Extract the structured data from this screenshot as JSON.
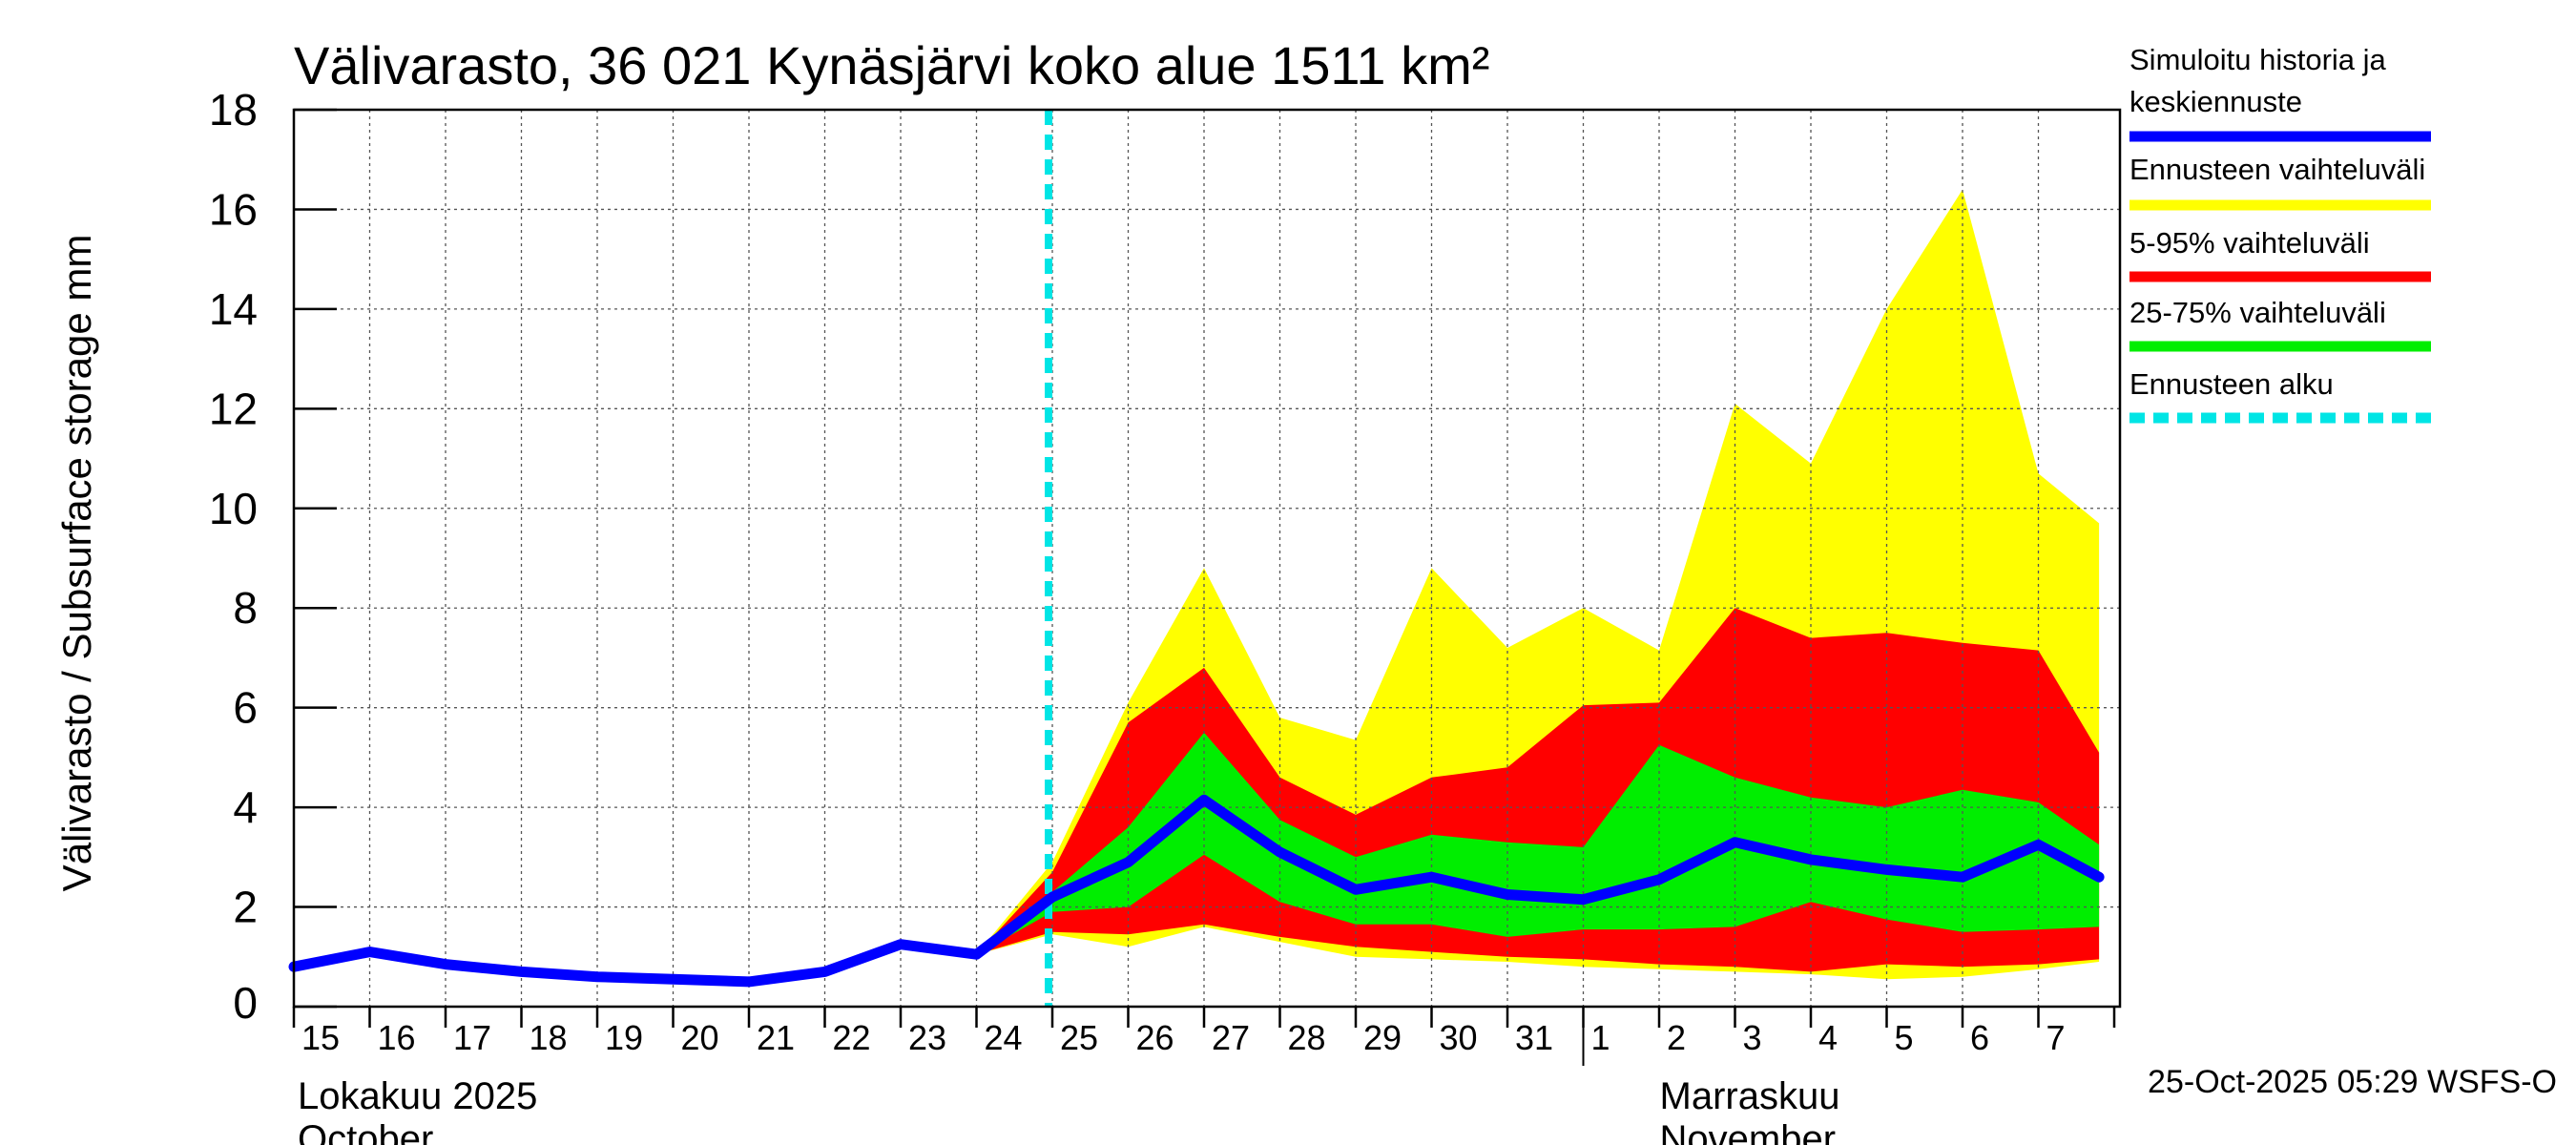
{
  "chart_data": {
    "type": "area",
    "title": "Välivarasto, 36 021 Kynäsjärvi koko alue 1511 km²",
    "ylabel": "Välivarasto / Subsurface storage  mm",
    "ylim": [
      0,
      18
    ],
    "yticks": [
      0,
      2,
      4,
      6,
      8,
      10,
      12,
      14,
      16,
      18
    ],
    "grid": true,
    "x_days": [
      "15",
      "16",
      "17",
      "18",
      "19",
      "20",
      "21",
      "22",
      "23",
      "24",
      "25",
      "26",
      "27",
      "28",
      "29",
      "30",
      "31",
      "1",
      "2",
      "3",
      "4",
      "5",
      "6",
      "7"
    ],
    "month_labels": [
      {
        "line1": "Lokakuu  2025",
        "line2": "October",
        "start_index": 0
      },
      {
        "line1": "Marraskuu",
        "line2": "November",
        "start_index": 17
      }
    ],
    "forecast_start_index": 9.95,
    "series": [
      {
        "name": "Simuloitu historia ja keskiennuste",
        "color": "#0000ff",
        "x": [
          0,
          1,
          2,
          3,
          4,
          5,
          6,
          7,
          8,
          9,
          10,
          11,
          12,
          13,
          14,
          15,
          16,
          17,
          18,
          19,
          20,
          21,
          22,
          23,
          23.8
        ],
        "values": [
          0.8,
          1.1,
          0.85,
          0.7,
          0.6,
          0.55,
          0.5,
          0.7,
          1.25,
          1.05,
          2.2,
          2.9,
          4.15,
          3.1,
          2.35,
          2.6,
          2.25,
          2.15,
          2.55,
          3.3,
          2.95,
          2.75,
          2.6,
          3.25,
          2.6
        ]
      }
    ],
    "bands": [
      {
        "name": "Ennusteen vaihteluväli",
        "color": "#ffff00",
        "x": [
          9,
          10,
          11,
          12,
          13,
          14,
          15,
          16,
          17,
          18,
          19,
          20,
          21,
          22,
          23,
          23.8
        ],
        "upper": [
          1.05,
          2.9,
          6.1,
          8.8,
          5.8,
          5.35,
          8.8,
          7.2,
          8.0,
          7.15,
          12.1,
          10.9,
          14.0,
          16.4,
          10.7,
          9.7
        ],
        "lower": [
          1.05,
          1.45,
          1.2,
          1.6,
          1.3,
          1.0,
          0.95,
          0.9,
          0.8,
          0.75,
          0.7,
          0.65,
          0.55,
          0.6,
          0.75,
          0.9
        ]
      },
      {
        "name": "5-95% vaihteluväli",
        "color": "#ff0000",
        "x": [
          9,
          10,
          11,
          12,
          13,
          14,
          15,
          16,
          17,
          18,
          19,
          20,
          21,
          22,
          23,
          23.8
        ],
        "upper": [
          1.05,
          2.7,
          5.7,
          6.8,
          4.6,
          3.85,
          4.6,
          4.8,
          6.05,
          6.1,
          8.0,
          7.4,
          7.5,
          7.3,
          7.15,
          5.1
        ],
        "lower": [
          1.05,
          1.5,
          1.45,
          1.65,
          1.4,
          1.2,
          1.1,
          1.0,
          0.95,
          0.85,
          0.8,
          0.7,
          0.85,
          0.8,
          0.85,
          0.95
        ]
      },
      {
        "name": "25-75% vaihteluväli",
        "color": "#00ee00",
        "x": [
          9,
          10,
          11,
          12,
          13,
          14,
          15,
          16,
          17,
          18,
          19,
          20,
          21,
          22,
          23,
          23.8
        ],
        "upper": [
          1.05,
          2.3,
          3.6,
          5.5,
          3.75,
          3.0,
          3.45,
          3.3,
          3.2,
          5.25,
          4.6,
          4.2,
          4.0,
          4.35,
          4.1,
          3.25
        ],
        "lower": [
          1.05,
          1.9,
          2.0,
          3.05,
          2.1,
          1.65,
          1.65,
          1.4,
          1.55,
          1.55,
          1.6,
          2.1,
          1.75,
          1.5,
          1.55,
          1.6
        ]
      }
    ],
    "legend": [
      {
        "label": "Simuloitu historia ja keskiennuste",
        "color": "#0000ff",
        "style": "line"
      },
      {
        "label": "Ennusteen vaihteluväli",
        "color": "#ffff00",
        "style": "line"
      },
      {
        "label": "5-95% vaihteluväli",
        "color": "#ff0000",
        "style": "line"
      },
      {
        "label": "25-75% vaihteluväli",
        "color": "#00ee00",
        "style": "line"
      },
      {
        "label": "Ennusteen alku",
        "color": "#00e5e5",
        "style": "dashed"
      }
    ],
    "legend_position": "right",
    "footer": "25-Oct-2025 05:29 WSFS-O"
  }
}
